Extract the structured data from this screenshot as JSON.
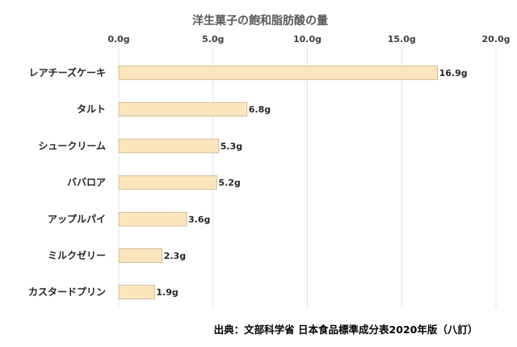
{
  "chart_data": {
    "type": "bar",
    "orientation": "horizontal",
    "title": "洋生菓子の飽和脂肪酸の量",
    "categories": [
      "レアチーズケーキ",
      "タルト",
      "シュークリーム",
      "ババロア",
      "アップルパイ",
      "ミルクゼリー",
      "カスタードプリン"
    ],
    "values": [
      16.9,
      6.8,
      5.3,
      5.2,
      3.6,
      2.3,
      1.9
    ],
    "value_labels": [
      "16.9g",
      "6.8g",
      "5.3g",
      "5.2g",
      "3.6g",
      "2.3g",
      "1.9g"
    ],
    "xlim": [
      0,
      20
    ],
    "x_ticks": [
      0,
      5,
      10,
      15,
      20
    ],
    "x_tick_labels": [
      "0.0g",
      "5.0g",
      "10.0g",
      "15.0g",
      "20.0g"
    ],
    "x_axis_position": "top",
    "grid": true,
    "bar_color": "#fbe5bd",
    "bar_edge_color": "#c9b48f"
  },
  "source_note": "出典：文部科学省 日本食品標準成分表2020年版（八訂）"
}
